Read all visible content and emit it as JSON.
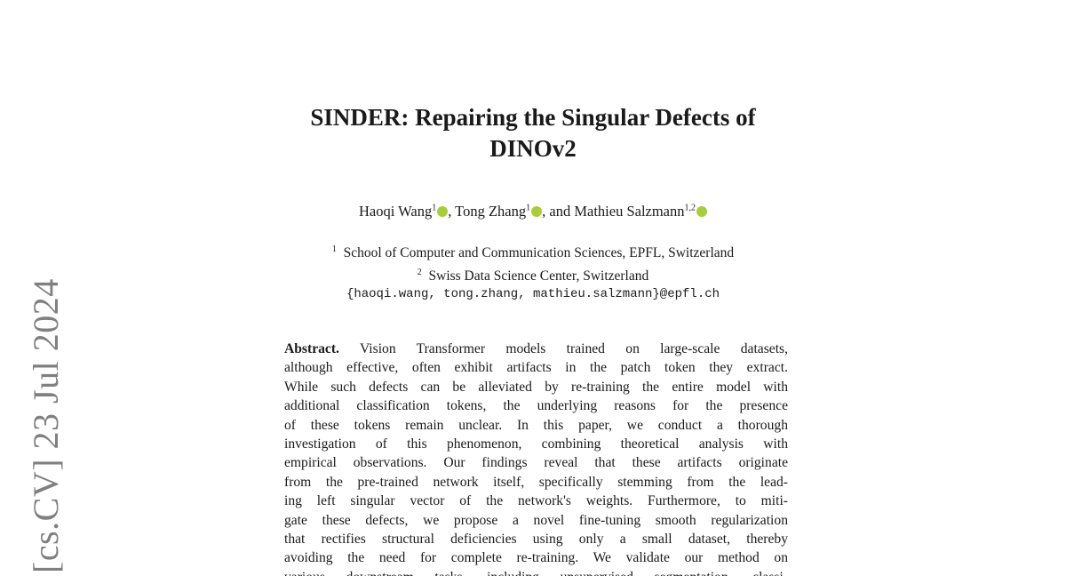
{
  "sidebar": {
    "arxiv_stamp": "[cs.CV]  23 Jul 2024"
  },
  "title": {
    "line1": "SINDER: Repairing the Singular Defects of",
    "line2": "DINOv2"
  },
  "authors": [
    {
      "name": "Haoqi Wang",
      "sup": "1"
    },
    {
      "name": "Tong Zhang",
      "sup": "1"
    },
    {
      "name": "Mathieu Salzmann",
      "sup": "1,2"
    }
  ],
  "author_sep": {
    "comma": ", ",
    "and": ", and "
  },
  "affiliations": [
    {
      "sup": "1",
      "text": "School of Computer and Communication Sciences, EPFL, Switzerland"
    },
    {
      "sup": "2",
      "text": "Swiss Data Science Center, Switzerland"
    }
  ],
  "email": "{haoqi.wang, tong.zhang, mathieu.salzmann}@epfl.ch",
  "abstract": {
    "label": "Abstract.",
    "lines": [
      " Vision Transformer models trained on large-scale datasets,",
      "although effective, often exhibit artifacts in the patch token they extract.",
      "While such defects can be alleviated by re-training the entire model with",
      "additional classification tokens, the underlying reasons for the presence",
      "of these tokens remain unclear. In this paper, we conduct a thorough",
      "investigation of this phenomenon, combining theoretical analysis with",
      "empirical observations. Our findings reveal that these artifacts originate",
      "from the pre-trained network itself, specifically stemming from the lead-",
      "ing left singular vector of the network's weights. Furthermore, to miti-",
      "gate these defects, we propose a novel fine-tuning smooth regularization",
      "that rectifies structural deficiencies using only a small dataset, thereby",
      "avoiding the need for complete re-training. We validate our method on",
      "various downstream tasks, including unsupervised segmentation, classi-"
    ]
  },
  "colors": {
    "orcid": "#a6ce39",
    "stamp": "#808080"
  }
}
